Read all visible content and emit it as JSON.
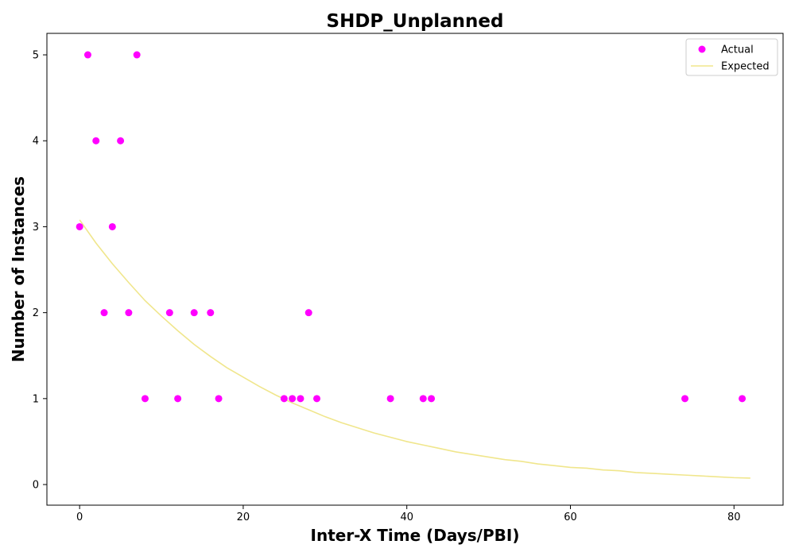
{
  "chart_data": {
    "type": "scatter",
    "title": "SHDP_Unplanned",
    "xlabel": "Inter-X Time (Days/PBI)",
    "ylabel": "Number of Instances",
    "xlim": [
      -4,
      86
    ],
    "ylim": [
      -0.24,
      5.25
    ],
    "x_ticks": [
      0,
      20,
      40,
      60,
      80
    ],
    "y_ticks": [
      0,
      1,
      2,
      3,
      4,
      5
    ],
    "grid": false,
    "legend": "top-right",
    "series": [
      {
        "name": "Actual",
        "kind": "scatter",
        "color": "#ff00ff",
        "points": [
          [
            0,
            3
          ],
          [
            1,
            5
          ],
          [
            2,
            4
          ],
          [
            3,
            2
          ],
          [
            4,
            3
          ],
          [
            5,
            4
          ],
          [
            6,
            2
          ],
          [
            7,
            5
          ],
          [
            8,
            1
          ],
          [
            11,
            2
          ],
          [
            12,
            1
          ],
          [
            14,
            2
          ],
          [
            16,
            2
          ],
          [
            17,
            1
          ],
          [
            25,
            1
          ],
          [
            26,
            1
          ],
          [
            27,
            1
          ],
          [
            28,
            2
          ],
          [
            29,
            1
          ],
          [
            38,
            1
          ],
          [
            42,
            1
          ],
          [
            43,
            1
          ],
          [
            74,
            1
          ],
          [
            81,
            1
          ]
        ]
      },
      {
        "name": "Expected",
        "kind": "line",
        "color": "#f0e68c",
        "points": [
          [
            0,
            3.08
          ],
          [
            2,
            2.81
          ],
          [
            4,
            2.57
          ],
          [
            6,
            2.35
          ],
          [
            8,
            2.14
          ],
          [
            10,
            1.96
          ],
          [
            12,
            1.79
          ],
          [
            14,
            1.63
          ],
          [
            16,
            1.49
          ],
          [
            18,
            1.36
          ],
          [
            20,
            1.25
          ],
          [
            22,
            1.14
          ],
          [
            24,
            1.04
          ],
          [
            26,
            0.95
          ],
          [
            28,
            0.87
          ],
          [
            30,
            0.79
          ],
          [
            32,
            0.72
          ],
          [
            34,
            0.66
          ],
          [
            36,
            0.6
          ],
          [
            38,
            0.55
          ],
          [
            40,
            0.5
          ],
          [
            42,
            0.46
          ],
          [
            44,
            0.42
          ],
          [
            46,
            0.38
          ],
          [
            48,
            0.35
          ],
          [
            50,
            0.32
          ],
          [
            52,
            0.29
          ],
          [
            54,
            0.27
          ],
          [
            56,
            0.24
          ],
          [
            58,
            0.22
          ],
          [
            60,
            0.2
          ],
          [
            62,
            0.19
          ],
          [
            64,
            0.17
          ],
          [
            66,
            0.16
          ],
          [
            68,
            0.14
          ],
          [
            70,
            0.13
          ],
          [
            72,
            0.12
          ],
          [
            74,
            0.11
          ],
          [
            76,
            0.1
          ],
          [
            78,
            0.09
          ],
          [
            80,
            0.08
          ],
          [
            82,
            0.075
          ]
        ]
      }
    ]
  }
}
